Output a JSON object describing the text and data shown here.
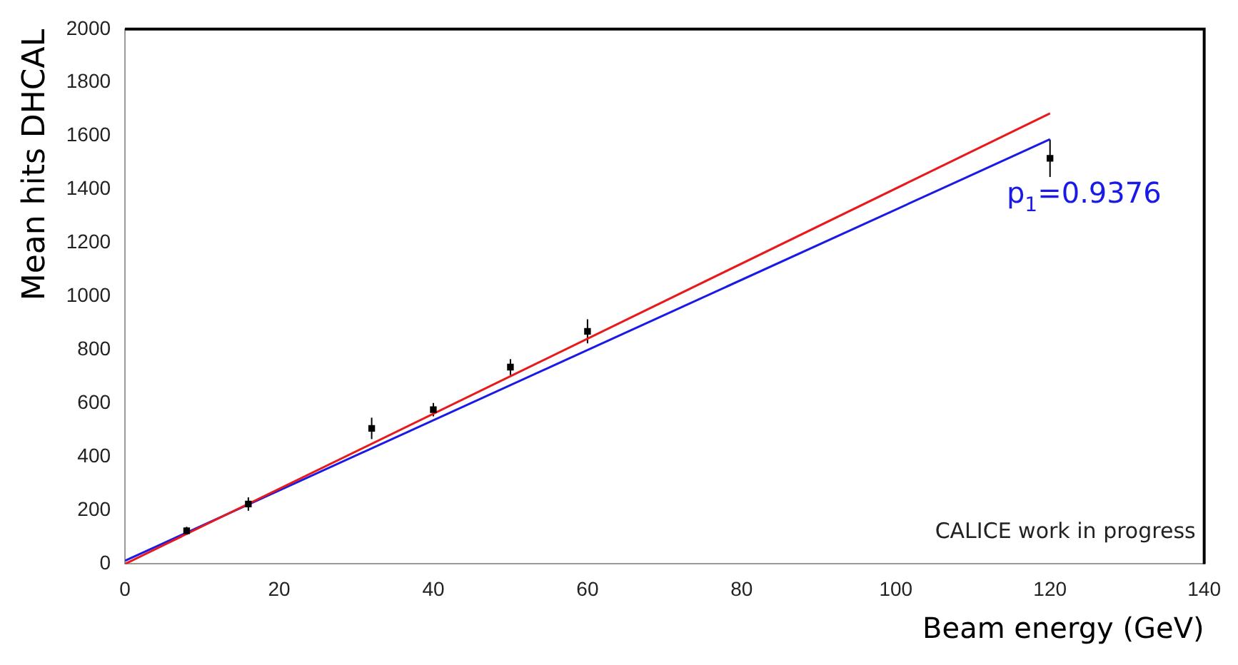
{
  "chart_data": {
    "type": "scatter",
    "xlabel": "Beam energy (GeV)",
    "ylabel": "Mean hits DHCAL",
    "xlim": [
      0,
      140
    ],
    "xticks": [
      0,
      20,
      40,
      60,
      80,
      100,
      120,
      140
    ],
    "ylim": [
      0,
      2000
    ],
    "yticks": [
      0,
      200,
      400,
      600,
      800,
      1000,
      1200,
      1400,
      1600,
      1800,
      2000
    ],
    "grid": false,
    "legend": false,
    "series": [
      {
        "type": "scatter",
        "marker": "square",
        "color": "#000000",
        "x": [
          8,
          16,
          32,
          40,
          50,
          60,
          120
        ],
        "values": [
          124,
          224,
          507,
          577,
          736,
          870,
          1517
        ],
        "errors": [
          15,
          25,
          40,
          25,
          30,
          45,
          70
        ]
      },
      {
        "type": "line",
        "marker": "none",
        "color": "#e8191c",
        "x": [
          0,
          120
        ],
        "values": [
          0,
          1685
        ]
      },
      {
        "type": "line",
        "marker": "none",
        "color": "#1a1ae6",
        "x": [
          0,
          120
        ],
        "values": [
          12,
          1588
        ]
      }
    ],
    "annotations": [
      "p$_{1}$=0.9376",
      "CALICE work in progress"
    ]
  }
}
